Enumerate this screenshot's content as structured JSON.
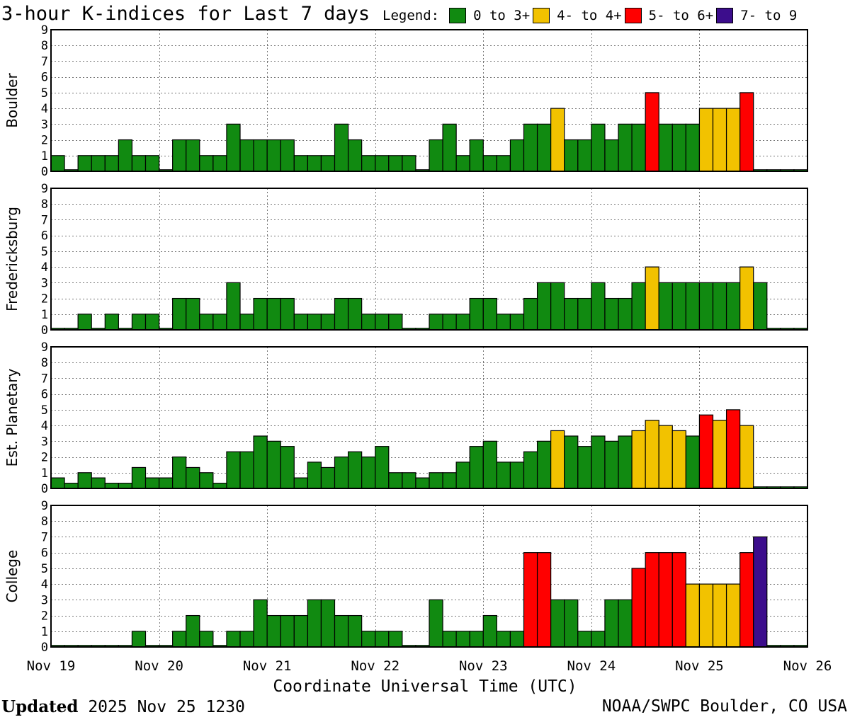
{
  "header": {
    "title": "3-hour K-indices for Last 7 days",
    "legend_label": "Legend:",
    "legend": [
      {
        "label": "0 to 3+",
        "color": "#118a11"
      },
      {
        "label": "4- to 4+",
        "color": "#f2c200"
      },
      {
        "label": "5- to 6+",
        "color": "#ff0000"
      },
      {
        "label": "7- to 9",
        "color": "#3c0d8c"
      }
    ]
  },
  "chart_data": {
    "type": "bar",
    "xlabel": "Coordinate Universal Time (UTC)",
    "x_ticks": [
      "Nov 19",
      "Nov 20",
      "Nov 21",
      "Nov 22",
      "Nov 23",
      "Nov 24",
      "Nov 25",
      "Nov 26"
    ],
    "ylim": [
      0,
      9
    ],
    "y_ticks": [
      0,
      1,
      2,
      3,
      4,
      5,
      6,
      7,
      8,
      9
    ],
    "grid": true,
    "bins_per_day": 8,
    "color_thresholds": {
      "green_below": 3.67,
      "yellow_below": 4.67,
      "red_below": 6.67
    },
    "panels": [
      {
        "name": "Boulder",
        "values": [
          1,
          0,
          1,
          1,
          1,
          2,
          1,
          1,
          0,
          2,
          2,
          1,
          1,
          3,
          2,
          2,
          2,
          2,
          1,
          1,
          1,
          3,
          2,
          1,
          1,
          1,
          1,
          0,
          2,
          3,
          1,
          2,
          1,
          1,
          2,
          3,
          3,
          4,
          2,
          2,
          3,
          2,
          3,
          3,
          5,
          3,
          3,
          3,
          4,
          4,
          4,
          5,
          0,
          0,
          0,
          0
        ]
      },
      {
        "name": "Fredericksburg",
        "values": [
          0,
          0,
          1,
          0,
          1,
          0,
          1,
          1,
          0,
          2,
          2,
          1,
          1,
          3,
          1,
          2,
          2,
          2,
          1,
          1,
          1,
          2,
          2,
          1,
          1,
          1,
          0,
          0,
          1,
          1,
          1,
          2,
          2,
          1,
          1,
          2,
          3,
          3,
          2,
          2,
          3,
          2,
          2,
          3,
          4,
          3,
          3,
          3,
          3,
          3,
          3,
          4,
          3,
          0,
          0,
          0
        ]
      },
      {
        "name": "Est. Planetary",
        "values": [
          0.67,
          0.33,
          1,
          0.67,
          0.33,
          0.33,
          1.33,
          0.67,
          0.67,
          2,
          1.33,
          1,
          0.33,
          2.33,
          2.33,
          3.33,
          3,
          2.67,
          0.67,
          1.67,
          1.33,
          2,
          2.33,
          2,
          2.67,
          1,
          1,
          0.67,
          1,
          1,
          1.67,
          2.67,
          3,
          1.67,
          1.67,
          2.33,
          3,
          3.67,
          3.33,
          2.67,
          3.33,
          3,
          3.33,
          3.67,
          4.33,
          4,
          3.67,
          3.33,
          4.67,
          4.33,
          5,
          4,
          0,
          0,
          0,
          0
        ]
      },
      {
        "name": "College",
        "values": [
          0,
          0,
          0,
          0,
          0,
          0,
          1,
          0,
          0,
          1,
          2,
          1,
          0,
          1,
          1,
          3,
          2,
          2,
          2,
          3,
          3,
          2,
          2,
          1,
          1,
          1,
          0,
          0,
          3,
          1,
          1,
          1,
          2,
          1,
          1,
          6,
          6,
          3,
          3,
          1,
          1,
          3,
          3,
          5,
          6,
          6,
          6,
          4,
          4,
          4,
          4,
          6,
          7,
          0,
          0,
          0
        ]
      }
    ]
  },
  "footer": {
    "updated_label": "Updated",
    "updated_value": "2025 Nov 25 1230",
    "credit": "NOAA/SWPC Boulder, CO USA"
  }
}
